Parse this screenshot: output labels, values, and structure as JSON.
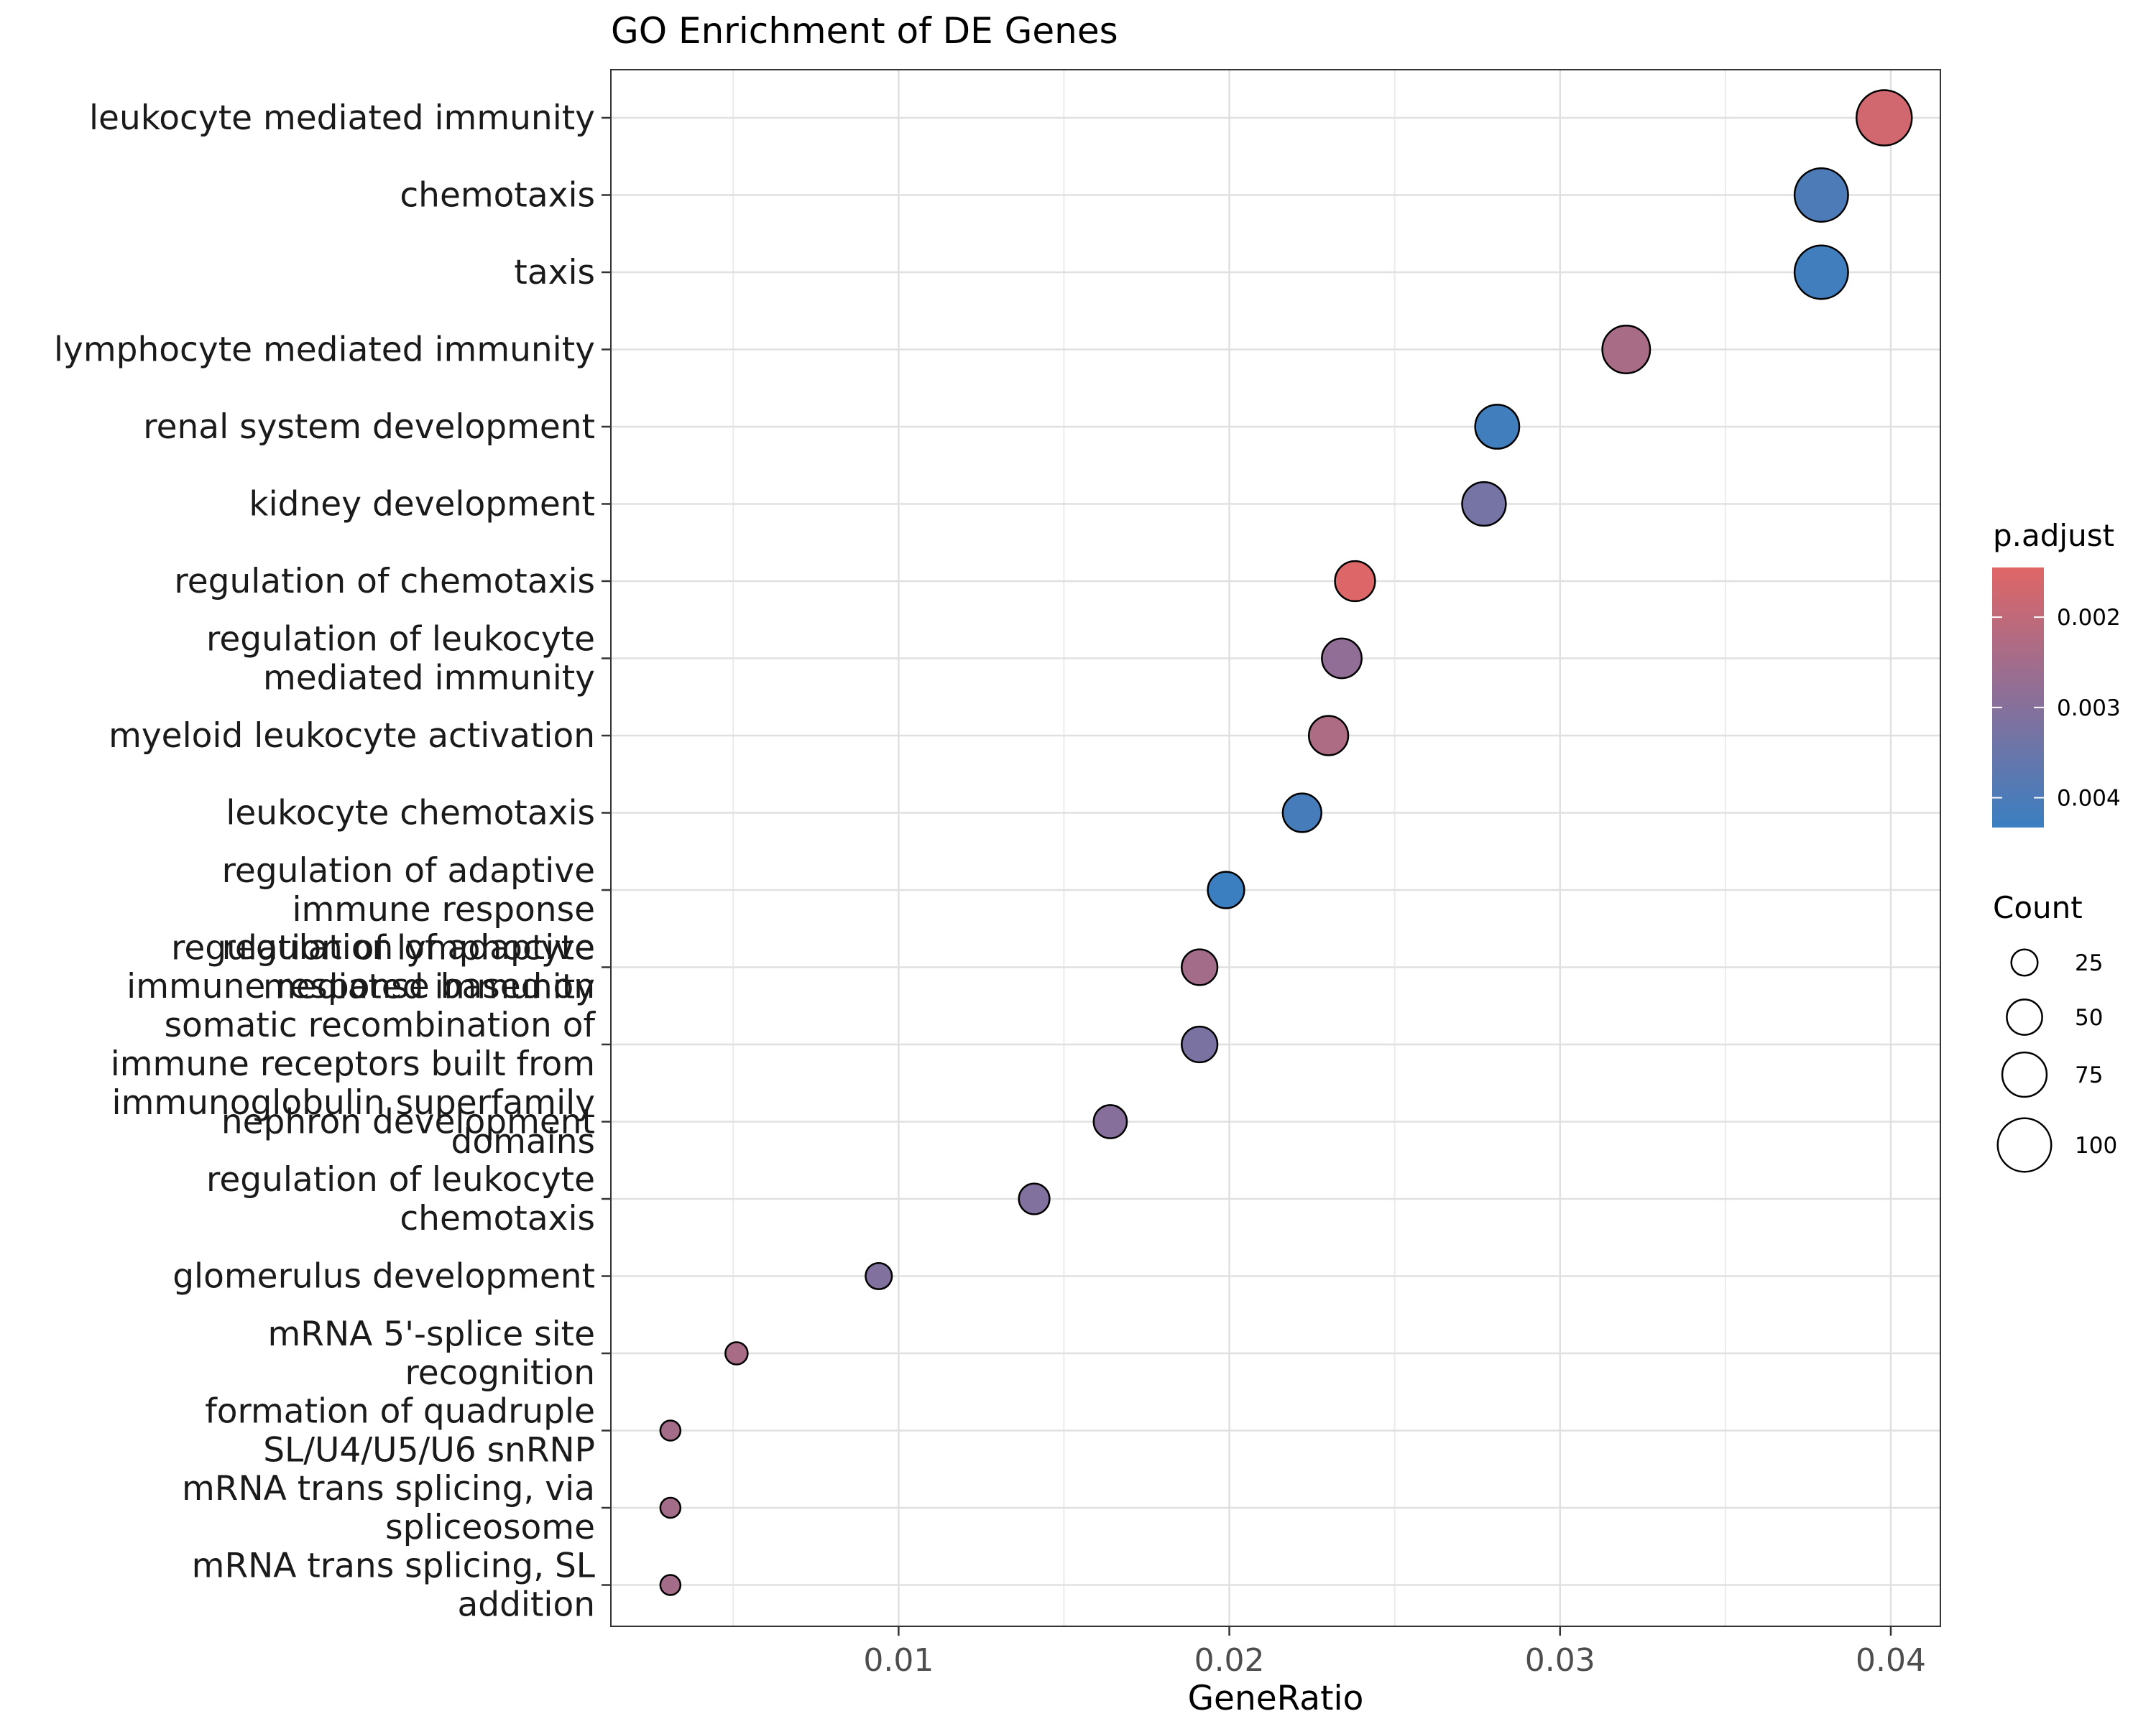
{
  "chart_data": {
    "type": "scatter",
    "title": "GO Enrichment of DE Genes",
    "xlabel": "GeneRatio",
    "ylabel": "",
    "xlim": [
      0.0013,
      0.0415
    ],
    "x_ticks": [
      0.01,
      0.02,
      0.03,
      0.04
    ],
    "x_tick_labels": [
      "0.01",
      "0.02",
      "0.03",
      "0.04"
    ],
    "grid": true,
    "points": [
      {
        "term": [
          "leukocyte mediated immunity"
        ],
        "gene_ratio": 0.0398,
        "count": 105,
        "p_adjust": 0.0017
      },
      {
        "term": [
          "chemotaxis"
        ],
        "gene_ratio": 0.0379,
        "count": 100,
        "p_adjust": 0.004
      },
      {
        "term": [
          "taxis"
        ],
        "gene_ratio": 0.0379,
        "count": 100,
        "p_adjust": 0.0042
      },
      {
        "term": [
          "lymphocyte mediated immunity"
        ],
        "gene_ratio": 0.032,
        "count": 84,
        "p_adjust": 0.0024
      },
      {
        "term": [
          "renal system development"
        ],
        "gene_ratio": 0.0281,
        "count": 74,
        "p_adjust": 0.0042
      },
      {
        "term": [
          "kidney development"
        ],
        "gene_ratio": 0.0277,
        "count": 73,
        "p_adjust": 0.0033
      },
      {
        "term": [
          "regulation of chemotaxis"
        ],
        "gene_ratio": 0.0238,
        "count": 63,
        "p_adjust": 0.0015
      },
      {
        "term": [
          "regulation of leukocyte",
          "mediated immunity"
        ],
        "gene_ratio": 0.0234,
        "count": 62,
        "p_adjust": 0.0028
      },
      {
        "term": [
          "myeloid leukocyte activation"
        ],
        "gene_ratio": 0.023,
        "count": 61,
        "p_adjust": 0.0023
      },
      {
        "term": [
          "leukocyte chemotaxis"
        ],
        "gene_ratio": 0.0222,
        "count": 59,
        "p_adjust": 0.0041
      },
      {
        "term": [
          "regulation of adaptive",
          "immune response"
        ],
        "gene_ratio": 0.0199,
        "count": 53,
        "p_adjust": 0.0043
      },
      {
        "term": [
          "regulation of lymphocyte",
          "mediated immunity"
        ],
        "gene_ratio": 0.0191,
        "count": 51,
        "p_adjust": 0.0025
      },
      {
        "term": [
          "regulation of adaptive",
          "immune response based on",
          "somatic recombination of",
          "immune receptors built from",
          "immunoglobulin superfamily",
          "domains"
        ],
        "gene_ratio": 0.0191,
        "count": 51,
        "p_adjust": 0.0032
      },
      {
        "term": [
          "nephron development"
        ],
        "gene_ratio": 0.0164,
        "count": 44,
        "p_adjust": 0.003
      },
      {
        "term": [
          "regulation of leukocyte",
          "chemotaxis"
        ],
        "gene_ratio": 0.0141,
        "count": 37,
        "p_adjust": 0.0031
      },
      {
        "term": [
          "glomerulus development"
        ],
        "gene_ratio": 0.0094,
        "count": 25,
        "p_adjust": 0.0031
      },
      {
        "term": [
          "mRNA 5'-splice site",
          "recognition"
        ],
        "gene_ratio": 0.0051,
        "count": 14,
        "p_adjust": 0.0024
      },
      {
        "term": [
          "formation of quadruple",
          "SL/U4/U5/U6 snRNP"
        ],
        "gene_ratio": 0.0031,
        "count": 8,
        "p_adjust": 0.0025
      },
      {
        "term": [
          "mRNA trans splicing, via",
          "spliceosome"
        ],
        "gene_ratio": 0.0031,
        "count": 8,
        "p_adjust": 0.0025
      },
      {
        "term": [
          "mRNA trans splicing, SL",
          "addition"
        ],
        "gene_ratio": 0.0031,
        "count": 8,
        "p_adjust": 0.0025
      }
    ],
    "legend_color": {
      "title": "p.adjust",
      "range": [
        0.00145,
        0.00433
      ],
      "breaks": [
        0.002,
        0.003,
        0.004
      ],
      "labels": [
        "0.002",
        "0.003",
        "0.004"
      ],
      "low_color": "#e06666",
      "high_color": "#3a7fc1"
    },
    "legend_size": {
      "title": "Count",
      "breaks": [
        25,
        50,
        75,
        100
      ],
      "labels": [
        "25",
        "50",
        "75",
        "100"
      ]
    },
    "legend_position": "right"
  }
}
